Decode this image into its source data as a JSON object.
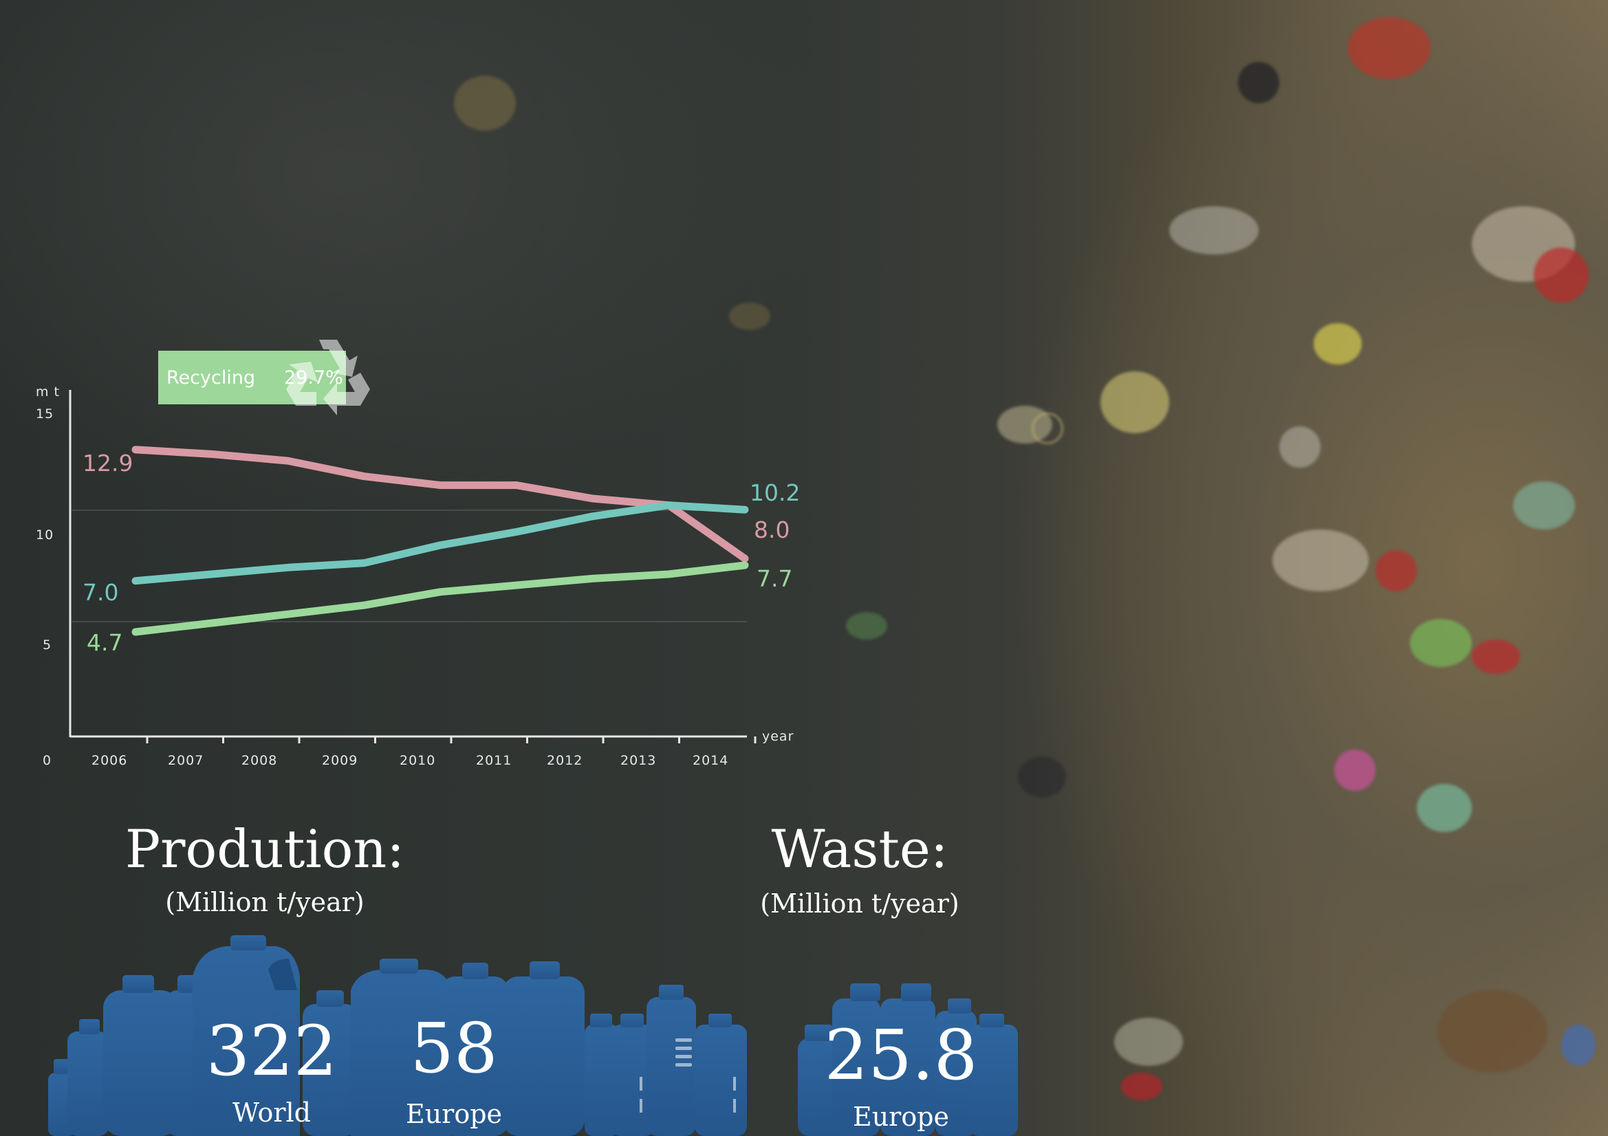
{
  "chart_data": {
    "type": "line",
    "xlabel": "year",
    "ylabel": "m t",
    "ylim": [
      0,
      15
    ],
    "y_ticks": [
      "15",
      "10",
      "5",
      "0"
    ],
    "categories": [
      "2006",
      "2007",
      "2008",
      "2009",
      "2010",
      "2011",
      "2012",
      "2013",
      "2014"
    ],
    "series": [
      {
        "color": "#d89aa4",
        "values": [
          12.9,
          12.7,
          12.4,
          11.7,
          11.3,
          11.3,
          10.7,
          10.4,
          8.0
        ],
        "start_label": "12.9",
        "end_label": "8.0"
      },
      {
        "color": "#74c7bd",
        "values": [
          7.0,
          7.3,
          7.6,
          7.8,
          8.6,
          9.2,
          9.9,
          10.4,
          10.2
        ],
        "start_label": "7.0",
        "end_label": "10.2"
      },
      {
        "color": "#9bd99a",
        "values": [
          4.7,
          5.1,
          5.5,
          5.9,
          6.5,
          6.8,
          7.1,
          7.3,
          7.7
        ],
        "start_label": "4.7",
        "end_label": "7.7"
      }
    ],
    "annotation": {
      "label": "Recycling",
      "value": "29.7%",
      "color": "#9dd79a"
    }
  },
  "production": {
    "heading": "Prodution:",
    "unit": "(Million t/year)",
    "world_value": "322",
    "world_label": "World",
    "europe_value": "58",
    "europe_label": "Europe"
  },
  "waste": {
    "heading": "Waste:",
    "unit": "(Million t/year)",
    "europe_value": "25.8",
    "europe_label": "Europe"
  },
  "colors": {
    "bottle": "#2e639c",
    "bottle_light": "#4a86c2"
  }
}
